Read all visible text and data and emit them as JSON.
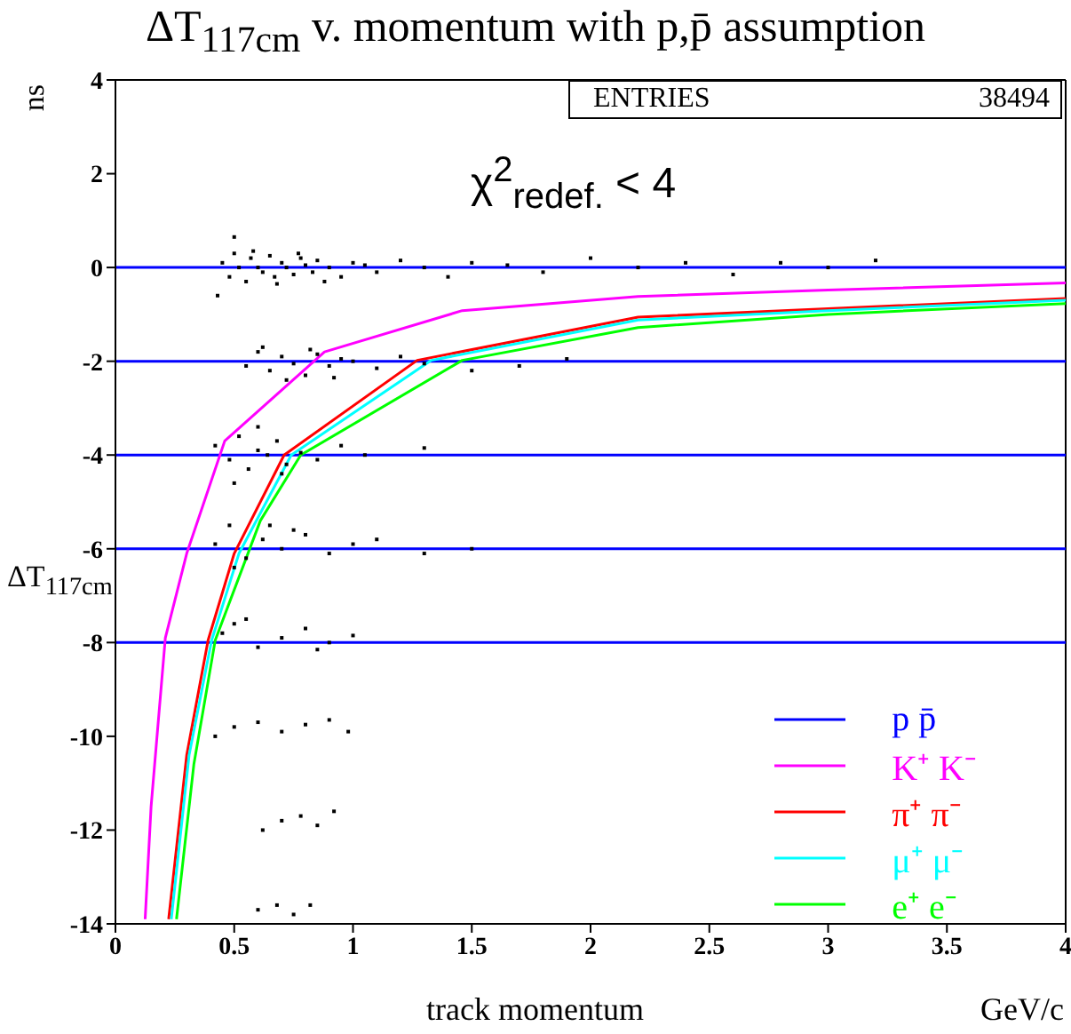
{
  "chart_data": {
    "type": "scatter",
    "title": "ΔT$_{117cm}$ v. momentum with p,p̄ assumption",
    "xlabel": "track momentum",
    "ylabel": "ΔT$_{117cm}$",
    "annotations": [
      "ns",
      "ENTRIES",
      "38494",
      "χ$^{2}$$_{redef.}$ < 4",
      "GeV/c"
    ],
    "xlim": [
      0,
      4
    ],
    "xticks": [
      0,
      0.5,
      1,
      1.5,
      2,
      2.5,
      3,
      3.5,
      4
    ],
    "ylim": [
      -14,
      4
    ],
    "yticks": [
      -14,
      -12,
      -10,
      -8,
      -6,
      -4,
      -2,
      0,
      2,
      4
    ],
    "legend": "bottom right",
    "ref_lines": [
      {
        "axis": "y",
        "value": -2,
        "color": "#0000ff"
      },
      {
        "axis": "y",
        "value": -4,
        "color": "#0000ff"
      },
      {
        "axis": "y",
        "value": -6,
        "color": "#0000ff"
      },
      {
        "axis": "y",
        "value": -8,
        "color": "#0000ff"
      }
    ],
    "series": [
      {
        "marker": "square",
        "color": "#000000",
        "x": [
          0.43,
          0.45,
          0.48,
          0.5,
          0.52,
          0.55,
          0.57,
          0.6,
          0.62,
          0.65,
          0.67,
          0.7,
          0.72,
          0.75,
          0.78,
          0.8,
          0.83,
          0.85,
          0.9,
          0.95,
          1.0,
          1.05,
          1.1,
          1.2,
          1.3,
          1.4,
          1.5,
          1.65,
          1.8,
          2.0,
          2.2,
          2.4,
          2.6,
          2.8,
          3.0,
          3.2,
          0.5,
          0.58,
          0.68,
          0.77,
          0.88,
          0.55,
          0.6,
          0.65,
          0.7,
          0.75,
          0.8,
          0.85,
          0.9,
          0.95,
          1.0,
          1.1,
          1.2,
          1.3,
          1.5,
          1.7,
          1.9,
          0.62,
          0.72,
          0.82,
          0.92,
          0.42,
          0.48,
          0.52,
          0.56,
          0.6,
          0.64,
          0.68,
          0.72,
          0.78,
          0.85,
          0.95,
          1.05,
          1.3,
          0.5,
          0.6,
          0.7,
          0.42,
          0.48,
          0.55,
          0.62,
          0.7,
          0.8,
          0.9,
          1.0,
          1.1,
          1.3,
          1.5,
          0.5,
          0.65,
          0.75,
          0.45,
          0.5,
          0.6,
          0.7,
          0.8,
          0.9,
          1.0,
          0.55,
          0.85,
          0.42,
          0.5,
          0.6,
          0.7,
          0.8,
          0.9,
          0.98,
          0.62,
          0.7,
          0.78,
          0.85,
          0.92,
          0.6,
          0.68,
          0.75,
          0.82
        ],
        "values": [
          -0.6,
          0.1,
          -0.2,
          0.3,
          0.0,
          -0.3,
          0.2,
          0.0,
          -0.1,
          0.25,
          -0.2,
          0.1,
          0.0,
          -0.15,
          0.2,
          0.05,
          -0.1,
          0.15,
          0.0,
          -0.2,
          0.1,
          0.05,
          -0.1,
          0.15,
          0.0,
          -0.2,
          0.1,
          0.05,
          -0.1,
          0.2,
          0.0,
          0.1,
          -0.15,
          0.1,
          0.0,
          0.15,
          0.65,
          0.35,
          -0.35,
          0.3,
          -0.3,
          -2.1,
          -1.8,
          -2.2,
          -1.9,
          -2.05,
          -2.3,
          -1.85,
          -2.1,
          -1.95,
          -2.0,
          -2.15,
          -1.9,
          -2.05,
          -2.2,
          -2.1,
          -1.95,
          -1.7,
          -2.4,
          -1.75,
          -2.35,
          -3.8,
          -4.1,
          -3.6,
          -4.3,
          -3.9,
          -4.0,
          -3.7,
          -4.2,
          -3.95,
          -4.1,
          -3.8,
          -4.0,
          -3.85,
          -4.6,
          -3.4,
          -4.4,
          -5.9,
          -5.5,
          -6.2,
          -5.8,
          -6.0,
          -5.7,
          -6.1,
          -5.9,
          -5.8,
          -6.1,
          -6.0,
          -6.4,
          -5.5,
          -5.6,
          -7.8,
          -7.6,
          -8.1,
          -7.9,
          -7.7,
          -8.0,
          -7.85,
          -7.5,
          -8.15,
          -10.0,
          -9.8,
          -9.7,
          -9.9,
          -9.75,
          -9.65,
          -9.9,
          -12.0,
          -11.8,
          -11.7,
          -11.9,
          -11.6,
          -13.7,
          -13.6,
          -13.8,
          -13.6
        ]
      },
      {
        "type": "line",
        "name": "p p̄",
        "color": "#0000ff",
        "x": [
          0,
          4
        ],
        "values": [
          0,
          0
        ]
      },
      {
        "type": "line",
        "name": "K⁺ K⁻",
        "color": "#ff00ff",
        "x": [
          0.125,
          0.15,
          0.21,
          0.3,
          0.46,
          0.88,
          1.46,
          2.2,
          3,
          4
        ],
        "values": [
          -13.9,
          -11.5,
          -7.9,
          -6.1,
          -3.7,
          -1.8,
          -0.92,
          -0.62,
          -0.48,
          -0.33
        ]
      },
      {
        "type": "line",
        "name": "π⁺ π⁻",
        "color": "#ff0000",
        "x": [
          0.224,
          0.3,
          0.39,
          0.5,
          0.71,
          1.27,
          2.2,
          3,
          4
        ],
        "values": [
          -13.9,
          -10.4,
          -7.95,
          -6.1,
          -4.0,
          -1.98,
          -1.06,
          -0.88,
          -0.66
        ]
      },
      {
        "type": "line",
        "name": "μ⁺ μ⁻",
        "color": "#00ffff",
        "x": [
          0.235,
          0.31,
          0.405,
          0.52,
          0.74,
          1.33,
          2.2,
          3,
          4
        ],
        "values": [
          -13.9,
          -10.4,
          -7.95,
          -6.1,
          -4.0,
          -1.98,
          -1.12,
          -0.92,
          -0.7
        ]
      },
      {
        "type": "line",
        "name": "e⁺ e⁻",
        "color": "#00ff00",
        "x": [
          0.257,
          0.33,
          0.42,
          0.61,
          0.78,
          1.46,
          2.2,
          3,
          4
        ],
        "values": [
          -13.9,
          -10.6,
          -7.95,
          -5.4,
          -4.0,
          -1.98,
          -1.28,
          -1.0,
          -0.77
        ]
      }
    ]
  }
}
